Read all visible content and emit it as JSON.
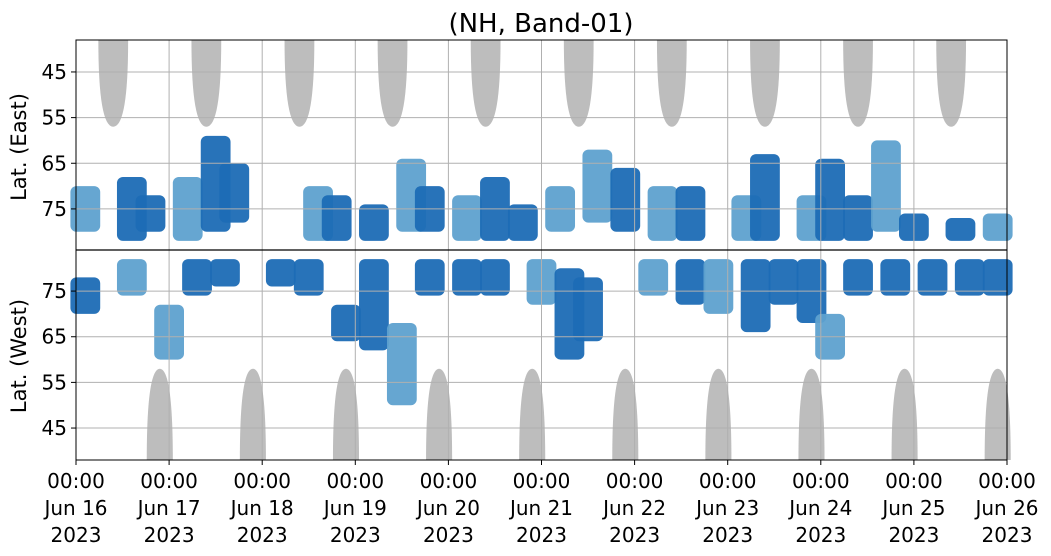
{
  "chart_data": {
    "type": "heatmap",
    "title": "(NH, Band-01)",
    "ylabel_top": "Lat. (East)",
    "ylabel_bottom": "Lat. (West)",
    "x_range": [
      "2023-06-16 00:00",
      "2023-06-26 00:00"
    ],
    "x_ticks": [
      {
        "time": "00:00",
        "date": "Jun 16",
        "year": "2023"
      },
      {
        "time": "00:00",
        "date": "Jun 17",
        "year": "2023"
      },
      {
        "time": "00:00",
        "date": "Jun 18",
        "year": "2023"
      },
      {
        "time": "00:00",
        "date": "Jun 19",
        "year": "2023"
      },
      {
        "time": "00:00",
        "date": "Jun 20",
        "year": "2023"
      },
      {
        "time": "00:00",
        "date": "Jun 21",
        "year": "2023"
      },
      {
        "time": "00:00",
        "date": "Jun 22",
        "year": "2023"
      },
      {
        "time": "00:00",
        "date": "Jun 23",
        "year": "2023"
      },
      {
        "time": "00:00",
        "date": "Jun 24",
        "year": "2023"
      },
      {
        "time": "00:00",
        "date": "Jun 25",
        "year": "2023"
      },
      {
        "time": "00:00",
        "date": "Jun 26",
        "year": "2023"
      }
    ],
    "y_ticks_east": [
      "45",
      "55",
      "65",
      "75"
    ],
    "y_ticks_west": [
      "75",
      "65",
      "55",
      "45"
    ],
    "y_tick_values_east": [
      45,
      55,
      65,
      75
    ],
    "y_tick_values_west": [
      75,
      65,
      55,
      45
    ],
    "lat_range": [
      38,
      84
    ],
    "grid": true,
    "colors": {
      "strong": "#1c6bb5",
      "weak": "#5ea1cf",
      "night": "#bdbdbd",
      "divider": "#000000",
      "grid": "#b0b0b0"
    },
    "night_regions_east": [
      {
        "center_day": 0.4,
        "min_lat": 57
      },
      {
        "center_day": 1.4,
        "min_lat": 57
      },
      {
        "center_day": 2.4,
        "min_lat": 57
      },
      {
        "center_day": 3.4,
        "min_lat": 57
      },
      {
        "center_day": 4.4,
        "min_lat": 57
      },
      {
        "center_day": 5.4,
        "min_lat": 57
      },
      {
        "center_day": 6.4,
        "min_lat": 57
      },
      {
        "center_day": 7.4,
        "min_lat": 57
      },
      {
        "center_day": 8.4,
        "min_lat": 57
      },
      {
        "center_day": 9.4,
        "min_lat": 57
      }
    ],
    "night_regions_west": [
      {
        "center_day": 0.9,
        "min_lat": 58
      },
      {
        "center_day": 1.9,
        "min_lat": 58
      },
      {
        "center_day": 2.9,
        "min_lat": 58
      },
      {
        "center_day": 3.9,
        "min_lat": 58
      },
      {
        "center_day": 4.9,
        "min_lat": 58
      },
      {
        "center_day": 5.9,
        "min_lat": 58
      },
      {
        "center_day": 6.9,
        "min_lat": 58
      },
      {
        "center_day": 7.9,
        "min_lat": 58
      },
      {
        "center_day": 8.9,
        "min_lat": 58
      },
      {
        "center_day": 9.9,
        "min_lat": 58
      }
    ],
    "echo_east": [
      {
        "day": 0.1,
        "lat_lo": 70,
        "lat_hi": 80,
        "s": "weak"
      },
      {
        "day": 0.6,
        "lat_lo": 68,
        "lat_hi": 82,
        "s": "strong"
      },
      {
        "day": 0.8,
        "lat_lo": 72,
        "lat_hi": 80,
        "s": "strong"
      },
      {
        "day": 1.2,
        "lat_lo": 68,
        "lat_hi": 82,
        "s": "weak"
      },
      {
        "day": 1.5,
        "lat_lo": 59,
        "lat_hi": 80,
        "s": "strong"
      },
      {
        "day": 1.7,
        "lat_lo": 65,
        "lat_hi": 78,
        "s": "strong"
      },
      {
        "day": 2.6,
        "lat_lo": 70,
        "lat_hi": 82,
        "s": "weak"
      },
      {
        "day": 2.8,
        "lat_lo": 72,
        "lat_hi": 82,
        "s": "strong"
      },
      {
        "day": 3.2,
        "lat_lo": 74,
        "lat_hi": 82,
        "s": "strong"
      },
      {
        "day": 3.6,
        "lat_lo": 64,
        "lat_hi": 80,
        "s": "weak"
      },
      {
        "day": 3.8,
        "lat_lo": 70,
        "lat_hi": 80,
        "s": "strong"
      },
      {
        "day": 4.2,
        "lat_lo": 72,
        "lat_hi": 82,
        "s": "weak"
      },
      {
        "day": 4.5,
        "lat_lo": 68,
        "lat_hi": 82,
        "s": "strong"
      },
      {
        "day": 4.8,
        "lat_lo": 74,
        "lat_hi": 82,
        "s": "strong"
      },
      {
        "day": 5.2,
        "lat_lo": 70,
        "lat_hi": 80,
        "s": "weak"
      },
      {
        "day": 5.6,
        "lat_lo": 62,
        "lat_hi": 78,
        "s": "weak"
      },
      {
        "day": 5.9,
        "lat_lo": 66,
        "lat_hi": 80,
        "s": "strong"
      },
      {
        "day": 6.3,
        "lat_lo": 70,
        "lat_hi": 82,
        "s": "weak"
      },
      {
        "day": 6.6,
        "lat_lo": 70,
        "lat_hi": 82,
        "s": "strong"
      },
      {
        "day": 7.2,
        "lat_lo": 72,
        "lat_hi": 82,
        "s": "weak"
      },
      {
        "day": 7.4,
        "lat_lo": 63,
        "lat_hi": 82,
        "s": "strong"
      },
      {
        "day": 7.9,
        "lat_lo": 72,
        "lat_hi": 82,
        "s": "weak"
      },
      {
        "day": 8.1,
        "lat_lo": 64,
        "lat_hi": 82,
        "s": "strong"
      },
      {
        "day": 8.4,
        "lat_lo": 72,
        "lat_hi": 82,
        "s": "strong"
      },
      {
        "day": 8.7,
        "lat_lo": 60,
        "lat_hi": 80,
        "s": "weak"
      },
      {
        "day": 9.0,
        "lat_lo": 76,
        "lat_hi": 82,
        "s": "strong"
      },
      {
        "day": 9.5,
        "lat_lo": 77,
        "lat_hi": 82,
        "s": "strong"
      },
      {
        "day": 9.9,
        "lat_lo": 76,
        "lat_hi": 82,
        "s": "weak"
      }
    ],
    "echo_west": [
      {
        "day": 0.1,
        "lat_lo": 70,
        "lat_hi": 78,
        "s": "strong"
      },
      {
        "day": 0.6,
        "lat_lo": 74,
        "lat_hi": 82,
        "s": "weak"
      },
      {
        "day": 1.0,
        "lat_lo": 60,
        "lat_hi": 72,
        "s": "weak"
      },
      {
        "day": 1.3,
        "lat_lo": 74,
        "lat_hi": 82,
        "s": "strong"
      },
      {
        "day": 1.6,
        "lat_lo": 76,
        "lat_hi": 82,
        "s": "strong"
      },
      {
        "day": 2.2,
        "lat_lo": 76,
        "lat_hi": 82,
        "s": "strong"
      },
      {
        "day": 2.5,
        "lat_lo": 74,
        "lat_hi": 82,
        "s": "strong"
      },
      {
        "day": 2.9,
        "lat_lo": 64,
        "lat_hi": 72,
        "s": "strong"
      },
      {
        "day": 3.2,
        "lat_lo": 62,
        "lat_hi": 82,
        "s": "strong"
      },
      {
        "day": 3.5,
        "lat_lo": 50,
        "lat_hi": 68,
        "s": "weak"
      },
      {
        "day": 3.8,
        "lat_lo": 74,
        "lat_hi": 82,
        "s": "strong"
      },
      {
        "day": 4.2,
        "lat_lo": 74,
        "lat_hi": 82,
        "s": "strong"
      },
      {
        "day": 4.5,
        "lat_lo": 74,
        "lat_hi": 82,
        "s": "strong"
      },
      {
        "day": 5.0,
        "lat_lo": 72,
        "lat_hi": 82,
        "s": "weak"
      },
      {
        "day": 5.3,
        "lat_lo": 60,
        "lat_hi": 80,
        "s": "strong"
      },
      {
        "day": 5.5,
        "lat_lo": 64,
        "lat_hi": 78,
        "s": "strong"
      },
      {
        "day": 6.2,
        "lat_lo": 74,
        "lat_hi": 82,
        "s": "weak"
      },
      {
        "day": 6.6,
        "lat_lo": 72,
        "lat_hi": 82,
        "s": "strong"
      },
      {
        "day": 6.9,
        "lat_lo": 70,
        "lat_hi": 82,
        "s": "weak"
      },
      {
        "day": 7.3,
        "lat_lo": 66,
        "lat_hi": 82,
        "s": "strong"
      },
      {
        "day": 7.6,
        "lat_lo": 72,
        "lat_hi": 82,
        "s": "strong"
      },
      {
        "day": 7.9,
        "lat_lo": 68,
        "lat_hi": 82,
        "s": "strong"
      },
      {
        "day": 8.1,
        "lat_lo": 60,
        "lat_hi": 70,
        "s": "weak"
      },
      {
        "day": 8.4,
        "lat_lo": 74,
        "lat_hi": 82,
        "s": "strong"
      },
      {
        "day": 8.8,
        "lat_lo": 74,
        "lat_hi": 82,
        "s": "strong"
      },
      {
        "day": 9.2,
        "lat_lo": 74,
        "lat_hi": 82,
        "s": "strong"
      },
      {
        "day": 9.6,
        "lat_lo": 74,
        "lat_hi": 82,
        "s": "strong"
      },
      {
        "day": 9.9,
        "lat_lo": 74,
        "lat_hi": 82,
        "s": "strong"
      }
    ]
  }
}
